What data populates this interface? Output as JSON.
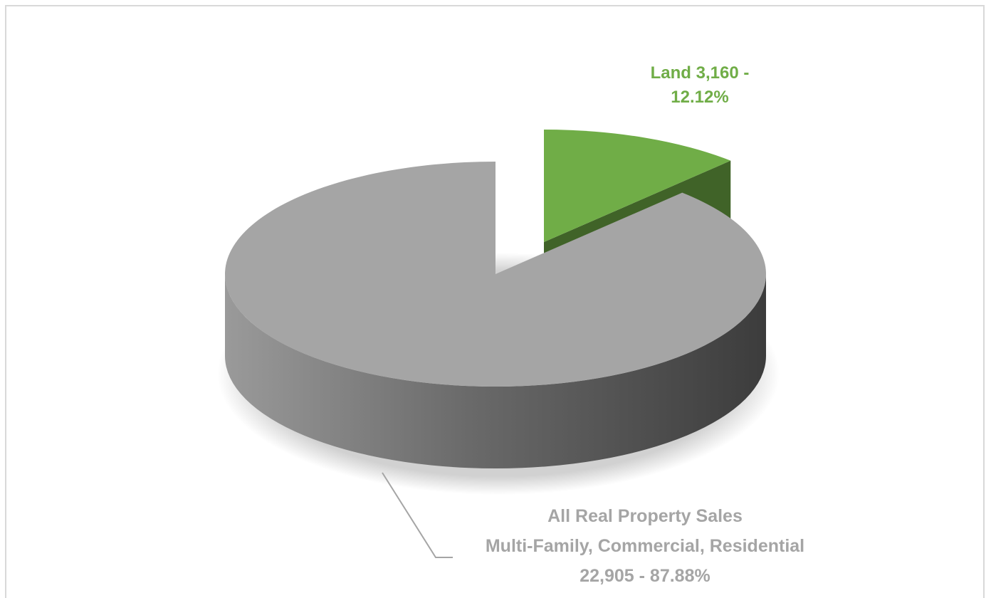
{
  "chart_data": {
    "type": "pie3d",
    "categories": [
      "Land",
      "All Real Property Sales\nMulti-Family, Commercial, Residential"
    ],
    "values": [
      3160,
      22905
    ],
    "value_labels": [
      "3,160 - 12.12%",
      "22,905 - 87.88%"
    ],
    "colors": [
      "#70ad47",
      "#a5a5a5"
    ]
  }
}
